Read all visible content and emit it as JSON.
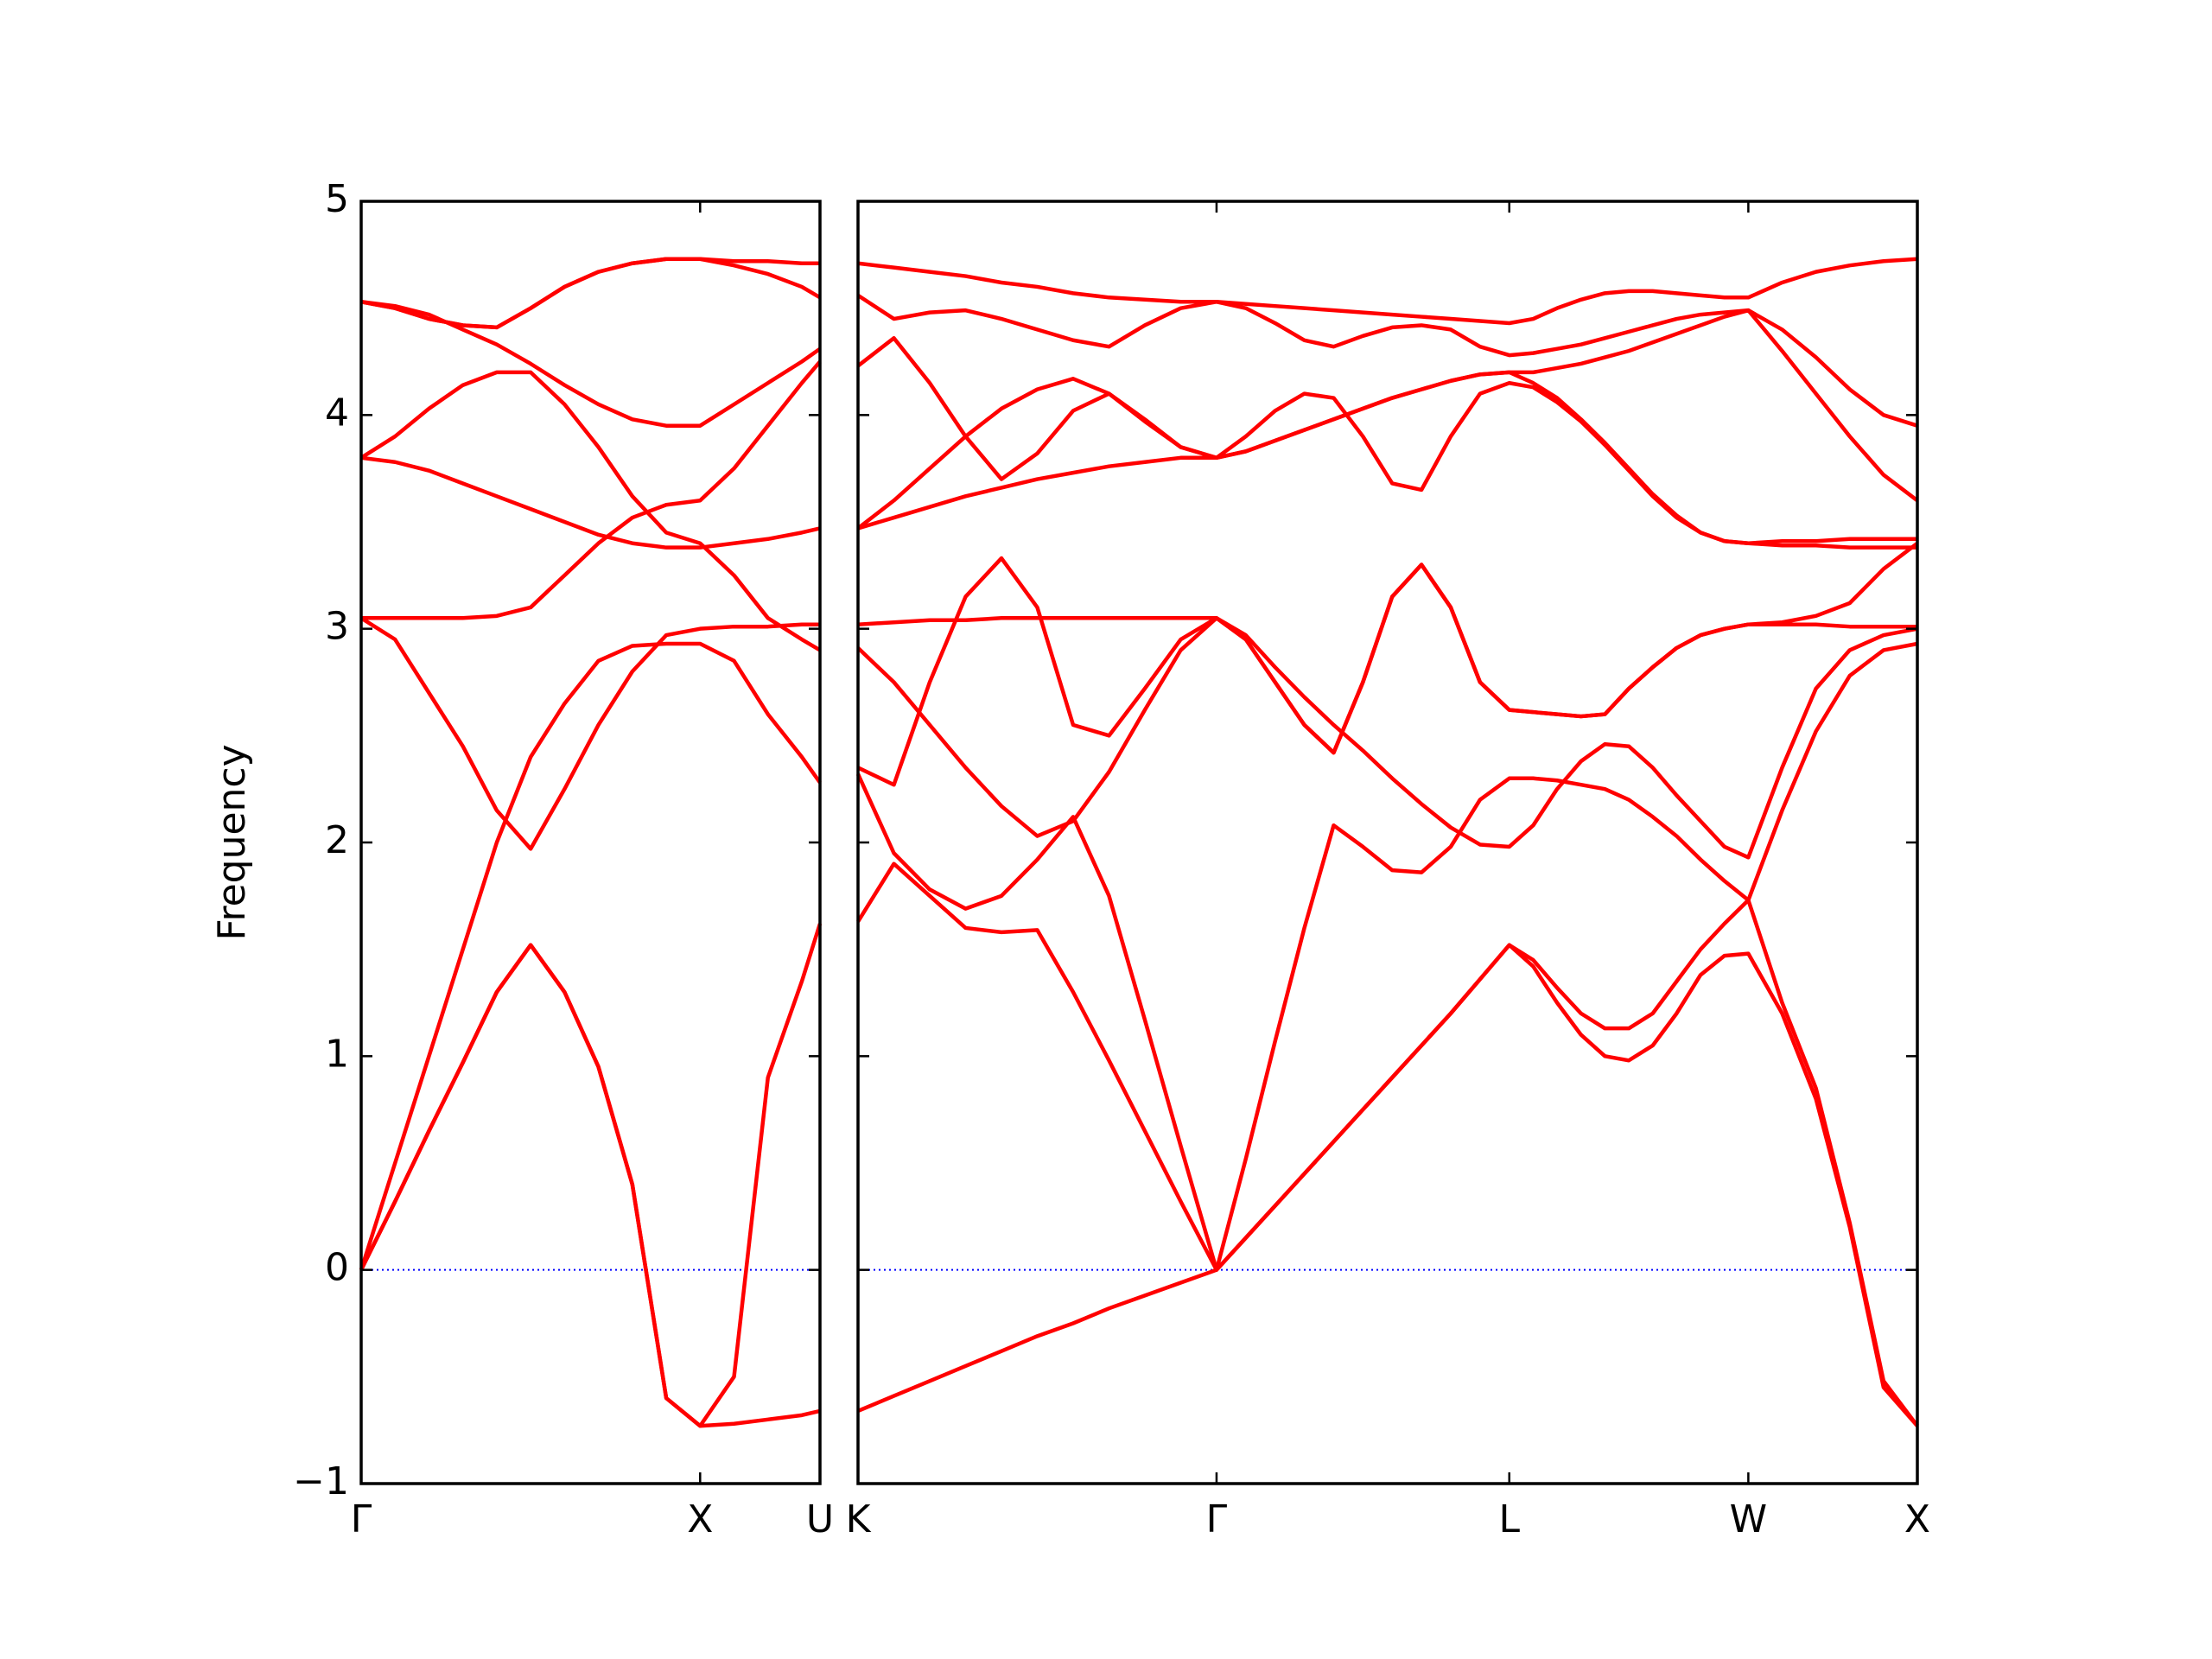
{
  "chart_data": [
    {
      "type": "line",
      "y_label": "Frequency",
      "color": "#ff0000",
      "xlim": [
        0,
        1.3536
      ],
      "ylim": [
        -1,
        5
      ],
      "xticks": [
        {
          "value": 0,
          "label": "Γ"
        },
        {
          "value": 1,
          "label": "X"
        },
        {
          "value": 1.3536,
          "label": "U"
        }
      ],
      "yticks": [
        {
          "value": -1,
          "label": "−1"
        },
        0,
        1,
        2,
        3,
        4,
        5
      ],
      "hline": {
        "y": 0,
        "color": "#0000ff",
        "style": "dotted"
      },
      "x": [
        0,
        0.1,
        0.2,
        0.3,
        0.4,
        0.5,
        0.6,
        0.7,
        0.8,
        0.9,
        1,
        1.1,
        1.2,
        1.3,
        1.3536
      ],
      "series": [
        {
          "values": [
            0,
            0.32,
            0.65,
            0.97,
            1.3,
            1.52,
            1.3,
            0.95,
            0.4,
            -0.6,
            -0.73,
            -0.72,
            -0.7,
            -0.68,
            -0.66
          ]
        },
        {
          "values": [
            0,
            0.32,
            0.65,
            0.97,
            1.3,
            1.52,
            1.3,
            0.95,
            0.4,
            -0.6,
            -0.73,
            -0.5,
            0.9,
            1.35,
            1.62
          ]
        },
        {
          "values": [
            0,
            0.5,
            1.0,
            1.5,
            2.0,
            2.4,
            2.65,
            2.85,
            2.92,
            2.93,
            2.93,
            2.85,
            2.6,
            2.4,
            2.28
          ]
        },
        {
          "values": [
            3.05,
            2.95,
            2.7,
            2.45,
            2.15,
            1.97,
            2.25,
            2.55,
            2.8,
            2.97,
            3.0,
            3.01,
            3.01,
            3.02,
            3.02
          ]
        },
        {
          "values": [
            3.05,
            3.05,
            3.05,
            3.05,
            3.06,
            3.1,
            3.25,
            3.4,
            3.52,
            3.58,
            3.6,
            3.75,
            3.95,
            4.15,
            4.25
          ]
        },
        {
          "values": [
            3.8,
            3.78,
            3.74,
            3.68,
            3.62,
            3.56,
            3.5,
            3.44,
            3.4,
            3.38,
            3.38,
            3.4,
            3.42,
            3.45,
            3.47
          ]
        },
        {
          "values": [
            3.8,
            3.9,
            4.03,
            4.14,
            4.2,
            4.2,
            4.05,
            3.85,
            3.62,
            3.45,
            3.4,
            3.25,
            3.05,
            2.95,
            2.9
          ]
        },
        {
          "values": [
            4.53,
            4.5,
            4.45,
            4.42,
            4.41,
            4.5,
            4.6,
            4.67,
            4.71,
            4.73,
            4.73,
            4.72,
            4.72,
            4.71,
            4.71
          ]
        },
        {
          "values": [
            4.53,
            4.5,
            4.45,
            4.42,
            4.41,
            4.5,
            4.6,
            4.67,
            4.71,
            4.73,
            4.73,
            4.7,
            4.66,
            4.6,
            4.55
          ]
        },
        {
          "values": [
            4.53,
            4.51,
            4.47,
            4.4,
            4.33,
            4.24,
            4.14,
            4.05,
            3.98,
            3.95,
            3.95,
            4.05,
            4.15,
            4.25,
            4.31
          ]
        }
      ]
    },
    {
      "type": "line",
      "color": "#ff0000",
      "ytick_labels": false,
      "xlim": [
        1.3536,
        4.4873
      ],
      "ylim": [
        -1,
        5
      ],
      "xticks": [
        {
          "value": 1.3536,
          "label": "K"
        },
        {
          "value": 2.4142,
          "label": "Γ"
        },
        {
          "value": 3.2802,
          "label": "L"
        },
        {
          "value": 3.9873,
          "label": "W"
        },
        {
          "value": 4.4873,
          "label": "X"
        }
      ],
      "yticks": [
        -1,
        0,
        1,
        2,
        3,
        4,
        5
      ],
      "hline": {
        "y": 0,
        "color": "#0000ff",
        "style": "dotted"
      },
      "x": [
        1.3536,
        1.4597,
        1.5657,
        1.6718,
        1.7779,
        1.8839,
        1.99,
        2.0961,
        2.2021,
        2.3082,
        2.4142,
        2.5008,
        2.5874,
        2.674,
        2.7606,
        2.8472,
        2.9338,
        3.0204,
        3.107,
        3.1936,
        3.2802,
        3.3509,
        3.4216,
        3.4923,
        3.563,
        3.6338,
        3.7045,
        3.7752,
        3.8459,
        3.9166,
        3.9873,
        4.0873,
        4.1873,
        4.2873,
        4.3873,
        4.4873
      ],
      "series": [
        {
          "values": [
            -0.66,
            -0.59,
            -0.52,
            -0.45,
            -0.38,
            -0.31,
            -0.25,
            -0.18,
            -0.12,
            -0.06,
            0,
            0.15,
            0.3,
            0.45,
            0.6,
            0.75,
            0.9,
            1.05,
            1.2,
            1.36,
            1.52,
            1.45,
            1.32,
            1.2,
            1.13,
            1.13,
            1.2,
            1.35,
            1.5,
            1.62,
            1.73,
            1.25,
            0.85,
            0.22,
            -0.52,
            -0.73
          ]
        },
        {
          "values": [
            1.63,
            1.9,
            1.75,
            1.6,
            1.58,
            1.59,
            1.3,
            0.98,
            0.65,
            0.32,
            0,
            0.52,
            1.07,
            1.6,
            2.08,
            1.98,
            1.87,
            1.86,
            1.98,
            2.2,
            2.3,
            2.3,
            2.29,
            2.27,
            2.25,
            2.2,
            2.12,
            2.03,
            1.92,
            1.82,
            1.73,
            2.15,
            2.52,
            2.78,
            2.9,
            2.93
          ]
        },
        {
          "values": [
            2.32,
            1.95,
            1.78,
            1.69,
            1.75,
            1.92,
            2.12,
            1.75,
            1.17,
            0.58,
            0,
            0.15,
            0.3,
            0.45,
            0.6,
            0.75,
            0.9,
            1.05,
            1.2,
            1.36,
            1.52,
            1.42,
            1.25,
            1.1,
            1.0,
            0.98,
            1.05,
            1.2,
            1.38,
            1.47,
            1.48,
            1.2,
            0.8,
            0.2,
            -0.55,
            -0.73
          ]
        },
        {
          "values": [
            2.91,
            2.75,
            2.55,
            2.35,
            2.17,
            2.03,
            2.1,
            2.33,
            2.62,
            2.9,
            3.05,
            2.95,
            2.75,
            2.55,
            2.42,
            2.75,
            3.15,
            3.3,
            3.1,
            2.75,
            2.62,
            2.61,
            2.6,
            2.59,
            2.6,
            2.72,
            2.82,
            2.91,
            2.97,
            3.0,
            3.02,
            3.02,
            3.02,
            3.01,
            3.01,
            3.01
          ]
        },
        {
          "values": [
            2.35,
            2.27,
            2.75,
            3.15,
            3.33,
            3.1,
            2.55,
            2.5,
            2.72,
            2.95,
            3.05,
            2.97,
            2.82,
            2.68,
            2.55,
            2.43,
            2.3,
            2.18,
            2.07,
            1.99,
            1.98,
            2.08,
            2.25,
            2.38,
            2.46,
            2.45,
            2.35,
            2.22,
            2.1,
            1.98,
            1.93,
            2.35,
            2.72,
            2.9,
            2.97,
            3.0
          ]
        },
        {
          "values": [
            3.02,
            3.03,
            3.04,
            3.04,
            3.05,
            3.05,
            3.05,
            3.05,
            3.05,
            3.05,
            3.05,
            2.95,
            2.75,
            2.55,
            2.42,
            2.75,
            3.15,
            3.3,
            3.1,
            2.75,
            2.62,
            2.61,
            2.6,
            2.59,
            2.6,
            2.72,
            2.82,
            2.91,
            2.97,
            3.0,
            3.02,
            3.03,
            3.06,
            3.12,
            3.28,
            3.4
          ]
        },
        {
          "values": [
            3.47,
            3.52,
            3.57,
            3.62,
            3.66,
            3.7,
            3.73,
            3.76,
            3.78,
            3.8,
            3.8,
            3.83,
            3.88,
            3.93,
            3.98,
            4.03,
            4.08,
            4.12,
            4.16,
            4.19,
            4.2,
            4.15,
            4.08,
            3.98,
            3.87,
            3.75,
            3.63,
            3.53,
            3.45,
            3.41,
            3.4,
            3.39,
            3.39,
            3.38,
            3.38,
            3.38
          ]
        },
        {
          "values": [
            3.47,
            3.6,
            3.75,
            3.9,
            4.03,
            4.12,
            4.17,
            4.1,
            3.97,
            3.85,
            3.8,
            3.9,
            4.02,
            4.1,
            4.08,
            3.9,
            3.68,
            3.65,
            3.9,
            4.1,
            4.15,
            4.13,
            4.06,
            3.97,
            3.86,
            3.74,
            3.62,
            3.52,
            3.45,
            3.41,
            3.4,
            3.41,
            3.41,
            3.42,
            3.42,
            3.42
          ]
        },
        {
          "values": [
            4.23,
            4.36,
            4.15,
            3.9,
            3.7,
            3.82,
            4.02,
            4.1,
            3.98,
            3.85,
            3.8,
            3.83,
            3.88,
            3.93,
            3.98,
            4.03,
            4.08,
            4.12,
            4.16,
            4.19,
            4.2,
            4.2,
            4.22,
            4.24,
            4.27,
            4.3,
            4.34,
            4.38,
            4.42,
            4.46,
            4.49,
            4.3,
            4.1,
            3.9,
            3.72,
            3.6
          ]
        },
        {
          "values": [
            4.56,
            4.45,
            4.48,
            4.49,
            4.45,
            4.4,
            4.35,
            4.32,
            4.42,
            4.5,
            4.53,
            4.5,
            4.43,
            4.35,
            4.32,
            4.37,
            4.41,
            4.42,
            4.4,
            4.32,
            4.28,
            4.29,
            4.31,
            4.33,
            4.36,
            4.39,
            4.42,
            4.45,
            4.47,
            4.48,
            4.49,
            4.4,
            4.27,
            4.12,
            4.0,
            3.95
          ]
        },
        {
          "values": [
            4.71,
            4.69,
            4.67,
            4.65,
            4.62,
            4.6,
            4.57,
            4.55,
            4.54,
            4.53,
            4.53,
            4.52,
            4.51,
            4.5,
            4.49,
            4.48,
            4.47,
            4.46,
            4.45,
            4.44,
            4.43,
            4.45,
            4.5,
            4.54,
            4.57,
            4.58,
            4.58,
            4.57,
            4.56,
            4.55,
            4.55,
            4.62,
            4.67,
            4.7,
            4.72,
            4.73
          ]
        }
      ]
    }
  ]
}
